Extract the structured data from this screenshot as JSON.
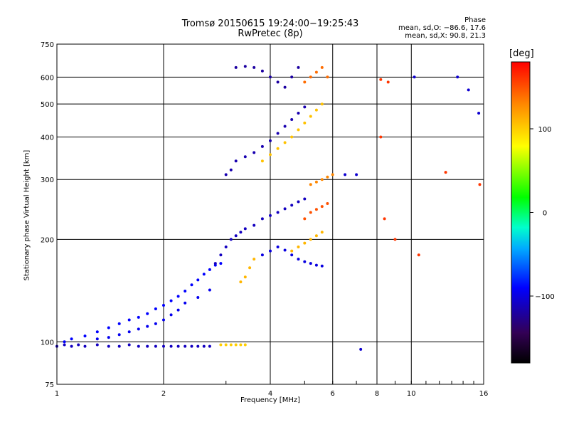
{
  "chart_data": {
    "type": "scatter",
    "title": "Tromsø 20150615 19:24:00−19:25:43",
    "subtitle": "RwPretec (8p)",
    "xlabel": "Frequency [MHz]",
    "ylabel": "Stationary phase Virtual Height [km]",
    "x_scale": "log",
    "y_scale": "log",
    "xlim": [
      1,
      16
    ],
    "ylim": [
      75,
      750
    ],
    "x_ticks": [
      1,
      2,
      4,
      6,
      8,
      10,
      16
    ],
    "y_ticks": [
      75,
      100,
      200,
      300,
      400,
      500,
      600,
      750
    ],
    "x_ticklabels": [
      "1",
      "2",
      "4",
      "6",
      "8",
      "10",
      "16"
    ],
    "y_ticklabels": [
      "75",
      "100",
      "200",
      "300",
      "400",
      "500",
      "600",
      "750"
    ],
    "grid": true,
    "colorbar": {
      "label": "[deg]",
      "range": [
        -180,
        180
      ],
      "ticks": [
        100,
        0,
        -100
      ],
      "tick_labels": [
        "100",
        "0",
        "−100"
      ]
    },
    "phase_stats": {
      "heading": "Phase",
      "o_line": "mean, sd,O: −86.6, 17.6",
      "x_line": "mean, sd,X: 90.8, 21.3"
    },
    "series": [
      {
        "color_phase_deg": -110,
        "points": [
          [
            1.0,
            97
          ],
          [
            1.05,
            98
          ],
          [
            1.1,
            97
          ],
          [
            1.15,
            98
          ],
          [
            1.2,
            97
          ],
          [
            1.3,
            98
          ],
          [
            1.4,
            97
          ],
          [
            1.5,
            97
          ],
          [
            1.6,
            98
          ],
          [
            1.7,
            97
          ],
          [
            1.8,
            97
          ],
          [
            1.9,
            97
          ],
          [
            2.0,
            97
          ],
          [
            2.1,
            97
          ],
          [
            2.2,
            97
          ],
          [
            2.3,
            97
          ],
          [
            2.4,
            97
          ],
          [
            2.5,
            97
          ],
          [
            2.6,
            97
          ],
          [
            2.7,
            97
          ]
        ]
      },
      {
        "color_phase_deg": -90,
        "points": [
          [
            1.05,
            100
          ],
          [
            1.1,
            102
          ],
          [
            1.2,
            104
          ],
          [
            1.3,
            107
          ],
          [
            1.4,
            110
          ],
          [
            1.5,
            113
          ],
          [
            1.6,
            116
          ],
          [
            1.7,
            118
          ],
          [
            1.8,
            121
          ],
          [
            1.9,
            125
          ],
          [
            2.0,
            128
          ],
          [
            2.1,
            132
          ],
          [
            2.2,
            136
          ],
          [
            2.3,
            141
          ],
          [
            2.4,
            147
          ],
          [
            2.5,
            152
          ],
          [
            2.6,
            158
          ],
          [
            2.7,
            163
          ],
          [
            2.8,
            168
          ],
          [
            2.9,
            170
          ]
        ]
      },
      {
        "color_phase_deg": -95,
        "points": [
          [
            1.3,
            102
          ],
          [
            1.4,
            103
          ],
          [
            1.5,
            105
          ],
          [
            1.6,
            107
          ],
          [
            1.7,
            109
          ],
          [
            1.8,
            111
          ],
          [
            1.9,
            113
          ],
          [
            2.0,
            116
          ],
          [
            2.1,
            120
          ],
          [
            2.2,
            124
          ],
          [
            2.3,
            130
          ],
          [
            2.5,
            135
          ],
          [
            2.7,
            142
          ]
        ]
      },
      {
        "color_phase_deg": 100,
        "points": [
          [
            2.9,
            98
          ],
          [
            3.0,
            98
          ],
          [
            3.1,
            98
          ],
          [
            3.2,
            98
          ],
          [
            3.3,
            98
          ],
          [
            3.4,
            98
          ]
        ]
      },
      {
        "color_phase_deg": -110,
        "points": [
          [
            2.8,
            170
          ],
          [
            2.9,
            180
          ],
          [
            3.0,
            190
          ],
          [
            3.1,
            200
          ],
          [
            3.2,
            205
          ],
          [
            3.3,
            210
          ],
          [
            3.4,
            215
          ],
          [
            3.6,
            220
          ],
          [
            3.8,
            230
          ],
          [
            4.0,
            235
          ],
          [
            4.2,
            240
          ],
          [
            4.4,
            246
          ],
          [
            4.6,
            252
          ],
          [
            4.8,
            258
          ],
          [
            5.0,
            263
          ]
        ]
      },
      {
        "color_phase_deg": -115,
        "points": [
          [
            3.0,
            310
          ],
          [
            3.1,
            320
          ],
          [
            3.2,
            340
          ],
          [
            3.4,
            350
          ],
          [
            3.6,
            360
          ],
          [
            3.8,
            375
          ],
          [
            4.0,
            390
          ],
          [
            4.2,
            410
          ],
          [
            4.4,
            430
          ],
          [
            4.6,
            450
          ],
          [
            4.8,
            470
          ],
          [
            5.0,
            490
          ]
        ]
      },
      {
        "color_phase_deg": -120,
        "points": [
          [
            3.2,
            640
          ],
          [
            3.4,
            645
          ],
          [
            3.6,
            640
          ],
          [
            3.8,
            625
          ],
          [
            4.0,
            600
          ],
          [
            4.2,
            580
          ],
          [
            4.4,
            560
          ],
          [
            4.6,
            600
          ],
          [
            4.8,
            640
          ]
        ]
      },
      {
        "color_phase_deg": -100,
        "points": [
          [
            3.8,
            180
          ],
          [
            4.0,
            185
          ],
          [
            4.2,
            190
          ],
          [
            4.4,
            186
          ],
          [
            4.6,
            180
          ],
          [
            4.8,
            175
          ],
          [
            5.0,
            172
          ],
          [
            5.2,
            170
          ],
          [
            5.4,
            168
          ],
          [
            5.6,
            167
          ]
        ]
      },
      {
        "color_phase_deg": 110,
        "points": [
          [
            3.3,
            150
          ],
          [
            3.4,
            155
          ],
          [
            3.5,
            165
          ],
          [
            3.6,
            175
          ],
          [
            4.6,
            185
          ],
          [
            4.8,
            190
          ],
          [
            5.0,
            195
          ],
          [
            5.2,
            200
          ],
          [
            5.4,
            205
          ],
          [
            5.6,
            210
          ]
        ]
      },
      {
        "color_phase_deg": 105,
        "points": [
          [
            3.8,
            340
          ],
          [
            4.0,
            355
          ],
          [
            4.2,
            370
          ],
          [
            4.4,
            385
          ],
          [
            4.6,
            400
          ],
          [
            4.8,
            420
          ],
          [
            5.0,
            440
          ],
          [
            5.2,
            460
          ],
          [
            5.4,
            480
          ],
          [
            5.6,
            500
          ]
        ]
      },
      {
        "color_phase_deg": 140,
        "points": [
          [
            5.0,
            580
          ],
          [
            5.2,
            600
          ],
          [
            5.4,
            620
          ],
          [
            5.6,
            640
          ],
          [
            5.8,
            600
          ]
        ]
      },
      {
        "color_phase_deg": 130,
        "points": [
          [
            5.2,
            290
          ],
          [
            5.4,
            295
          ],
          [
            5.6,
            300
          ],
          [
            5.8,
            305
          ],
          [
            6.0,
            310
          ]
        ]
      },
      {
        "color_phase_deg": 150,
        "points": [
          [
            5.0,
            230
          ],
          [
            5.2,
            240
          ],
          [
            5.4,
            245
          ],
          [
            5.6,
            250
          ],
          [
            5.8,
            255
          ]
        ]
      },
      {
        "color_phase_deg": -105,
        "points": [
          [
            6.5,
            310
          ],
          [
            7.0,
            310
          ],
          [
            7.2,
            95
          ],
          [
            10.2,
            600
          ],
          [
            13.5,
            600
          ],
          [
            14.5,
            550
          ],
          [
            15.5,
            470
          ]
        ]
      },
      {
        "color_phase_deg": 160,
        "points": [
          [
            8.2,
            590
          ],
          [
            8.6,
            580
          ],
          [
            8.2,
            400
          ],
          [
            8.4,
            230
          ],
          [
            9.0,
            200
          ],
          [
            10.5,
            180
          ],
          [
            12.5,
            315
          ],
          [
            15.6,
            290
          ]
        ]
      }
    ]
  }
}
